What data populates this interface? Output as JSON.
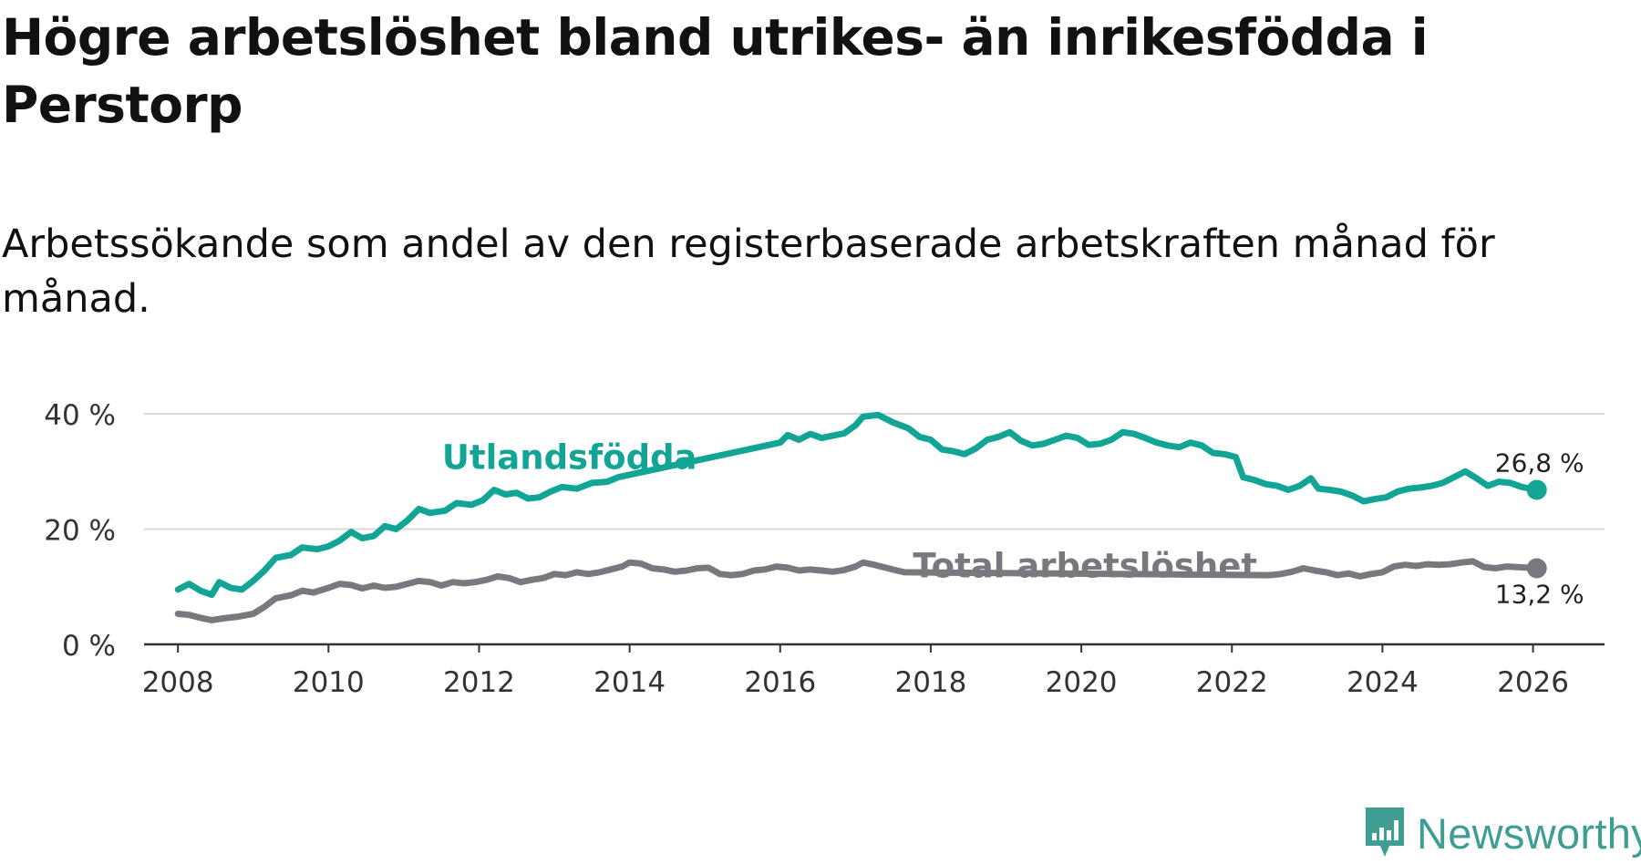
{
  "header": {
    "title": "Högre arbetslöshet bland utrikes- än inrikesfödda i Perstorp",
    "subtitle": "Arbetssökande som andel av den registerbaserade arbetskraften månad för månad."
  },
  "brand": {
    "name": "Newsworthy",
    "logo_icon": "bar-chart-bubble-icon"
  },
  "colors": {
    "foreign_born": "#12a595",
    "total": "#7a787f",
    "grid": "#d9d9d9",
    "axis": "#333333"
  },
  "chart_data": {
    "type": "line",
    "title": "Högre arbetslöshet bland utrikes- än inrikesfödda i Perstorp",
    "xlabel": "",
    "ylabel": "",
    "xlim": [
      2007.55,
      2026.95
    ],
    "ylim": [
      0,
      40
    ],
    "y_ticks": [
      0,
      20,
      40
    ],
    "y_tick_labels": [
      "0 %",
      "20 %",
      "40 %"
    ],
    "x_ticks": [
      2008,
      2010,
      2012,
      2014,
      2016,
      2018,
      2020,
      2022,
      2024,
      2026
    ],
    "x_tick_labels": [
      "2008",
      "2010",
      "2012",
      "2014",
      "2016",
      "2018",
      "2020",
      "2022",
      "2024",
      "2026"
    ],
    "grid": true,
    "series": [
      {
        "name": "Utlandsfödda",
        "label": "Utlandsfödda",
        "end_label": "26,8 %",
        "end_value": 26.8,
        "points": [
          [
            2008.0,
            9.5
          ],
          [
            2008.15,
            10.5
          ],
          [
            2008.3,
            9.3
          ],
          [
            2008.45,
            8.6
          ],
          [
            2008.55,
            10.8
          ],
          [
            2008.7,
            9.8
          ],
          [
            2008.85,
            9.5
          ],
          [
            2009.0,
            11.0
          ],
          [
            2009.15,
            12.8
          ],
          [
            2009.3,
            15.0
          ],
          [
            2009.5,
            15.5
          ],
          [
            2009.65,
            16.8
          ],
          [
            2009.85,
            16.5
          ],
          [
            2010.0,
            17.0
          ],
          [
            2010.15,
            18.0
          ],
          [
            2010.3,
            19.5
          ],
          [
            2010.45,
            18.4
          ],
          [
            2010.6,
            18.8
          ],
          [
            2010.75,
            20.5
          ],
          [
            2010.9,
            20.0
          ],
          [
            2011.05,
            21.5
          ],
          [
            2011.2,
            23.5
          ],
          [
            2011.35,
            22.8
          ],
          [
            2011.55,
            23.2
          ],
          [
            2011.7,
            24.5
          ],
          [
            2011.9,
            24.2
          ],
          [
            2012.05,
            25.0
          ],
          [
            2012.2,
            26.8
          ],
          [
            2012.35,
            26.0
          ],
          [
            2012.5,
            26.3
          ],
          [
            2012.65,
            25.3
          ],
          [
            2012.8,
            25.5
          ],
          [
            2012.95,
            26.5
          ],
          [
            2013.1,
            27.3
          ],
          [
            2013.3,
            27.0
          ],
          [
            2013.5,
            28.0
          ],
          [
            2013.7,
            28.2
          ],
          [
            2013.85,
            29.0
          ],
          [
            2016.0,
            35.0
          ],
          [
            2016.1,
            36.3
          ],
          [
            2016.25,
            35.5
          ],
          [
            2016.4,
            36.5
          ],
          [
            2016.55,
            35.8
          ],
          [
            2016.7,
            36.2
          ],
          [
            2016.85,
            36.6
          ],
          [
            2017.0,
            38.0
          ],
          [
            2017.1,
            39.5
          ],
          [
            2017.3,
            39.8
          ],
          [
            2017.5,
            38.5
          ],
          [
            2017.7,
            37.5
          ],
          [
            2017.85,
            36.0
          ],
          [
            2018.0,
            35.5
          ],
          [
            2018.15,
            33.8
          ],
          [
            2018.3,
            33.5
          ],
          [
            2018.45,
            33.0
          ],
          [
            2018.6,
            34.0
          ],
          [
            2018.75,
            35.5
          ],
          [
            2018.9,
            36.0
          ],
          [
            2019.05,
            36.8
          ],
          [
            2019.2,
            35.3
          ],
          [
            2019.35,
            34.5
          ],
          [
            2019.5,
            34.8
          ],
          [
            2019.65,
            35.5
          ],
          [
            2019.8,
            36.2
          ],
          [
            2019.95,
            35.8
          ],
          [
            2020.1,
            34.6
          ],
          [
            2020.25,
            34.8
          ],
          [
            2020.4,
            35.5
          ],
          [
            2020.55,
            36.8
          ],
          [
            2020.7,
            36.5
          ],
          [
            2020.85,
            35.8
          ],
          [
            2021.0,
            35.0
          ],
          [
            2021.15,
            34.5
          ],
          [
            2021.3,
            34.2
          ],
          [
            2021.45,
            35.0
          ],
          [
            2021.6,
            34.5
          ],
          [
            2021.75,
            33.2
          ],
          [
            2021.9,
            33.0
          ],
          [
            2022.05,
            32.5
          ],
          [
            2022.15,
            29.0
          ],
          [
            2022.3,
            28.5
          ],
          [
            2022.45,
            27.8
          ],
          [
            2022.6,
            27.5
          ],
          [
            2022.75,
            26.8
          ],
          [
            2022.9,
            27.5
          ],
          [
            2023.05,
            28.8
          ],
          [
            2023.15,
            27.0
          ],
          [
            2023.3,
            26.8
          ],
          [
            2023.45,
            26.5
          ],
          [
            2023.6,
            25.8
          ],
          [
            2023.75,
            24.8
          ],
          [
            2023.9,
            25.2
          ],
          [
            2024.05,
            25.5
          ],
          [
            2024.2,
            26.5
          ],
          [
            2024.35,
            27.0
          ],
          [
            2024.5,
            27.2
          ],
          [
            2024.65,
            27.5
          ],
          [
            2024.8,
            28.0
          ],
          [
            2024.95,
            29.0
          ],
          [
            2025.1,
            30.0
          ],
          [
            2025.25,
            28.8
          ],
          [
            2025.4,
            27.5
          ],
          [
            2025.55,
            28.2
          ],
          [
            2025.7,
            28.0
          ],
          [
            2025.85,
            27.3
          ],
          [
            2026.05,
            26.8
          ]
        ]
      },
      {
        "name": "Total arbetslöshet",
        "label": "Total arbetslöshet",
        "end_label": "13,2 %",
        "end_value": 13.2,
        "points": [
          [
            2008.0,
            5.3
          ],
          [
            2008.15,
            5.1
          ],
          [
            2008.3,
            4.6
          ],
          [
            2008.45,
            4.2
          ],
          [
            2008.6,
            4.5
          ],
          [
            2008.8,
            4.8
          ],
          [
            2009.0,
            5.3
          ],
          [
            2009.15,
            6.5
          ],
          [
            2009.3,
            8.0
          ],
          [
            2009.5,
            8.5
          ],
          [
            2009.65,
            9.3
          ],
          [
            2009.8,
            9.0
          ],
          [
            2010.0,
            9.8
          ],
          [
            2010.15,
            10.5
          ],
          [
            2010.3,
            10.3
          ],
          [
            2010.45,
            9.7
          ],
          [
            2010.6,
            10.2
          ],
          [
            2010.75,
            9.8
          ],
          [
            2010.9,
            10.0
          ],
          [
            2011.05,
            10.5
          ],
          [
            2011.2,
            11.0
          ],
          [
            2011.35,
            10.8
          ],
          [
            2011.5,
            10.2
          ],
          [
            2011.65,
            10.8
          ],
          [
            2011.8,
            10.6
          ],
          [
            2011.95,
            10.8
          ],
          [
            2012.1,
            11.2
          ],
          [
            2012.25,
            11.8
          ],
          [
            2012.4,
            11.5
          ],
          [
            2012.55,
            10.8
          ],
          [
            2012.7,
            11.2
          ],
          [
            2012.85,
            11.5
          ],
          [
            2013.0,
            12.2
          ],
          [
            2013.15,
            12.0
          ],
          [
            2013.3,
            12.5
          ],
          [
            2013.45,
            12.2
          ],
          [
            2013.6,
            12.5
          ],
          [
            2013.75,
            13.0
          ],
          [
            2013.9,
            13.5
          ],
          [
            2014.0,
            14.2
          ],
          [
            2014.15,
            14.0
          ],
          [
            2014.3,
            13.2
          ],
          [
            2014.45,
            13.0
          ],
          [
            2014.6,
            12.6
          ],
          [
            2014.75,
            12.8
          ],
          [
            2014.9,
            13.2
          ],
          [
            2015.05,
            13.3
          ],
          [
            2015.2,
            12.2
          ],
          [
            2015.35,
            12.0
          ],
          [
            2015.5,
            12.2
          ],
          [
            2015.65,
            12.8
          ],
          [
            2015.8,
            13.0
          ],
          [
            2015.95,
            13.5
          ],
          [
            2016.1,
            13.3
          ],
          [
            2016.25,
            12.8
          ],
          [
            2016.4,
            13.0
          ],
          [
            2016.55,
            12.8
          ],
          [
            2016.7,
            12.6
          ],
          [
            2016.85,
            12.9
          ],
          [
            2017.0,
            13.5
          ],
          [
            2017.1,
            14.2
          ],
          [
            2017.25,
            13.8
          ],
          [
            2017.4,
            13.3
          ],
          [
            2017.55,
            12.8
          ],
          [
            2017.65,
            12.5
          ],
          [
            2022.5,
            12.0
          ],
          [
            2022.65,
            12.2
          ],
          [
            2022.8,
            12.6
          ],
          [
            2022.95,
            13.2
          ],
          [
            2023.1,
            12.8
          ],
          [
            2023.25,
            12.5
          ],
          [
            2023.4,
            12.0
          ],
          [
            2023.55,
            12.3
          ],
          [
            2023.7,
            11.8
          ],
          [
            2023.85,
            12.2
          ],
          [
            2024.0,
            12.5
          ],
          [
            2024.15,
            13.5
          ],
          [
            2024.3,
            13.8
          ],
          [
            2024.45,
            13.6
          ],
          [
            2024.6,
            13.9
          ],
          [
            2024.75,
            13.8
          ],
          [
            2024.9,
            13.9
          ],
          [
            2025.05,
            14.2
          ],
          [
            2025.2,
            14.4
          ],
          [
            2025.35,
            13.4
          ],
          [
            2025.5,
            13.2
          ],
          [
            2025.65,
            13.5
          ],
          [
            2025.8,
            13.4
          ],
          [
            2026.05,
            13.2
          ]
        ]
      }
    ]
  }
}
